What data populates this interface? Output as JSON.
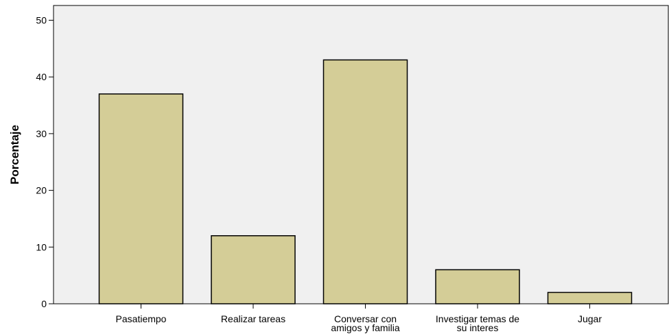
{
  "chart_data": {
    "type": "bar",
    "categories": [
      [
        "Pasatiempo"
      ],
      [
        "Realizar tareas"
      ],
      [
        "Conversar con",
        "amigos y familia"
      ],
      [
        "Investigar temas de",
        "su interes"
      ],
      [
        "Jugar"
      ]
    ],
    "values": [
      37,
      12,
      43,
      6,
      2
    ],
    "title": "",
    "xlabel": "",
    "ylabel": "Porcentaje",
    "ylim": [
      0,
      50
    ],
    "yticks": [
      "0",
      "10",
      "20",
      "30",
      "40",
      "50"
    ],
    "grid": false,
    "bar_color": "#d4cd97",
    "bar_stroke": "#000000",
    "plot_background": "#f0f0f0"
  }
}
